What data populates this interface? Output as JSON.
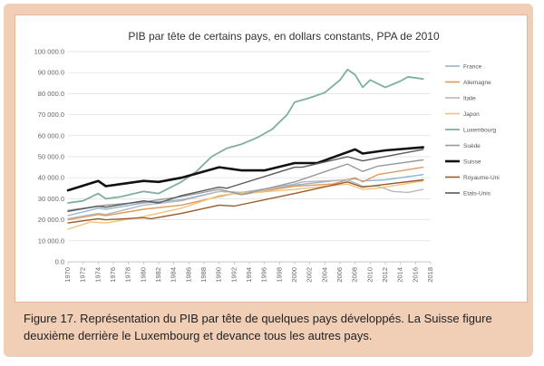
{
  "caption": {
    "text": "Figure 17. Représentation du PIB par tête de quelques pays développés. La Suisse figure deuxième derrière le Luxembourg et devance tous les autres pays."
  },
  "chart_data": {
    "type": "line",
    "title": "PIB par tête de certains pays, en dollars constants, PPA de 2010",
    "xlabel": "",
    "ylabel": "",
    "ylim": [
      0,
      100000
    ],
    "yticks": [
      "0.0",
      "10 000.0",
      "20 000.0",
      "30 000.0",
      "40 000.0",
      "50 000.0",
      "60 000.0",
      "70 000.0",
      "80 000.0",
      "90 000.0",
      "100 000.0"
    ],
    "xlim": [
      1970,
      2018
    ],
    "xticks": [
      "1970",
      "1972",
      "1974",
      "1976",
      "1978",
      "1980",
      "1982",
      "1984",
      "1986",
      "1988",
      "1990",
      "1992",
      "1994",
      "1996",
      "1998",
      "2000",
      "2002",
      "2004",
      "2006",
      "2008",
      "2010",
      "2012",
      "2014",
      "2016",
      "2018"
    ],
    "grid": true,
    "legend": "right",
    "series": [
      {
        "name": "France",
        "color": "#8fb5d4",
        "width": 1.4,
        "points": [
          [
            1970,
            22000
          ],
          [
            1974,
            25500
          ],
          [
            1975,
            25000
          ],
          [
            1980,
            28000
          ],
          [
            1985,
            29500
          ],
          [
            1990,
            33500
          ],
          [
            1993,
            33000
          ],
          [
            2000,
            36500
          ],
          [
            2005,
            38500
          ],
          [
            2008,
            39500
          ],
          [
            2009,
            38500
          ],
          [
            2012,
            39000
          ],
          [
            2017,
            41500
          ]
        ]
      },
      {
        "name": "Allemagne",
        "color": "#e09a5e",
        "width": 1.4,
        "points": [
          [
            1970,
            20000
          ],
          [
            1974,
            22500
          ],
          [
            1975,
            22000
          ],
          [
            1980,
            25000
          ],
          [
            1985,
            27000
          ],
          [
            1990,
            31000
          ],
          [
            1992,
            32500
          ],
          [
            1993,
            32000
          ],
          [
            2000,
            36000
          ],
          [
            2005,
            37000
          ],
          [
            2008,
            40000
          ],
          [
            2009,
            38000
          ],
          [
            2011,
            41500
          ],
          [
            2017,
            45000
          ]
        ]
      },
      {
        "name": "Italie",
        "color": "#b8b8b8",
        "width": 1.4,
        "points": [
          [
            1970,
            20500
          ],
          [
            1974,
            23000
          ],
          [
            1975,
            22500
          ],
          [
            1980,
            27000
          ],
          [
            1985,
            29000
          ],
          [
            1990,
            33500
          ],
          [
            1993,
            33000
          ],
          [
            2000,
            37000
          ],
          [
            2001,
            38000
          ],
          [
            2007,
            39000
          ],
          [
            2009,
            36000
          ],
          [
            2011,
            36000
          ],
          [
            2013,
            33500
          ],
          [
            2015,
            33000
          ],
          [
            2017,
            34500
          ]
        ]
      },
      {
        "name": "Japon",
        "color": "#f2c47a",
        "width": 1.4,
        "points": [
          [
            1970,
            15500
          ],
          [
            1973,
            19000
          ],
          [
            1975,
            18500
          ],
          [
            1980,
            21500
          ],
          [
            1985,
            25500
          ],
          [
            1990,
            31500
          ],
          [
            1992,
            32500
          ],
          [
            1995,
            33000
          ],
          [
            2000,
            34500
          ],
          [
            2007,
            37000
          ],
          [
            2009,
            34500
          ],
          [
            2011,
            35000
          ],
          [
            2017,
            38500
          ]
        ]
      },
      {
        "name": "Luxembourg",
        "color": "#7fb09e",
        "width": 1.8,
        "points": [
          [
            1970,
            28000
          ],
          [
            1972,
            29000
          ],
          [
            1974,
            32500
          ],
          [
            1975,
            30000
          ],
          [
            1977,
            31000
          ],
          [
            1980,
            33500
          ],
          [
            1982,
            32500
          ],
          [
            1985,
            38000
          ],
          [
            1987,
            43000
          ],
          [
            1989,
            50000
          ],
          [
            1991,
            54000
          ],
          [
            1993,
            56000
          ],
          [
            1995,
            59000
          ],
          [
            1997,
            63000
          ],
          [
            1999,
            70000
          ],
          [
            2000,
            76000
          ],
          [
            2002,
            78000
          ],
          [
            2004,
            80500
          ],
          [
            2006,
            86500
          ],
          [
            2007,
            91500
          ],
          [
            2008,
            89000
          ],
          [
            2009,
            83000
          ],
          [
            2010,
            86500
          ],
          [
            2012,
            83000
          ],
          [
            2014,
            86000
          ],
          [
            2015,
            88000
          ],
          [
            2017,
            87000
          ]
        ]
      },
      {
        "name": "Suède",
        "color": "#9a9a9a",
        "width": 1.4,
        "points": [
          [
            1970,
            24500
          ],
          [
            1975,
            27000
          ],
          [
            1980,
            28500
          ],
          [
            1985,
            31000
          ],
          [
            1990,
            34500
          ],
          [
            1993,
            32000
          ],
          [
            2000,
            38000
          ],
          [
            2007,
            46500
          ],
          [
            2009,
            43000
          ],
          [
            2011,
            45500
          ],
          [
            2017,
            48500
          ]
        ]
      },
      {
        "name": "Suisse",
        "color": "#111111",
        "width": 2.6,
        "points": [
          [
            1970,
            34000
          ],
          [
            1974,
            38500
          ],
          [
            1975,
            36000
          ],
          [
            1980,
            38500
          ],
          [
            1982,
            38000
          ],
          [
            1985,
            40000
          ],
          [
            1990,
            45000
          ],
          [
            1993,
            43500
          ],
          [
            1996,
            43500
          ],
          [
            2000,
            47000
          ],
          [
            2003,
            47000
          ],
          [
            2008,
            53500
          ],
          [
            2009,
            51500
          ],
          [
            2012,
            53000
          ],
          [
            2017,
            54500
          ]
        ]
      },
      {
        "name": "Royaume-Uni",
        "color": "#9a5a2c",
        "width": 1.4,
        "points": [
          [
            1970,
            18500
          ],
          [
            1974,
            20500
          ],
          [
            1975,
            20000
          ],
          [
            1980,
            21000
          ],
          [
            1981,
            20500
          ],
          [
            1985,
            23000
          ],
          [
            1990,
            27000
          ],
          [
            1992,
            26500
          ],
          [
            2000,
            32500
          ],
          [
            2007,
            38000
          ],
          [
            2009,
            35500
          ],
          [
            2017,
            39000
          ]
        ]
      },
      {
        "name": "Etats-Unis",
        "color": "#5a5a5a",
        "width": 1.4,
        "points": [
          [
            1970,
            24000
          ],
          [
            1974,
            26500
          ],
          [
            1975,
            26000
          ],
          [
            1980,
            29000
          ],
          [
            1982,
            28000
          ],
          [
            1985,
            31500
          ],
          [
            1990,
            35500
          ],
          [
            1991,
            35000
          ],
          [
            2000,
            45000
          ],
          [
            2001,
            45000
          ],
          [
            2007,
            50000
          ],
          [
            2009,
            48000
          ],
          [
            2017,
            53500
          ]
        ]
      }
    ]
  }
}
